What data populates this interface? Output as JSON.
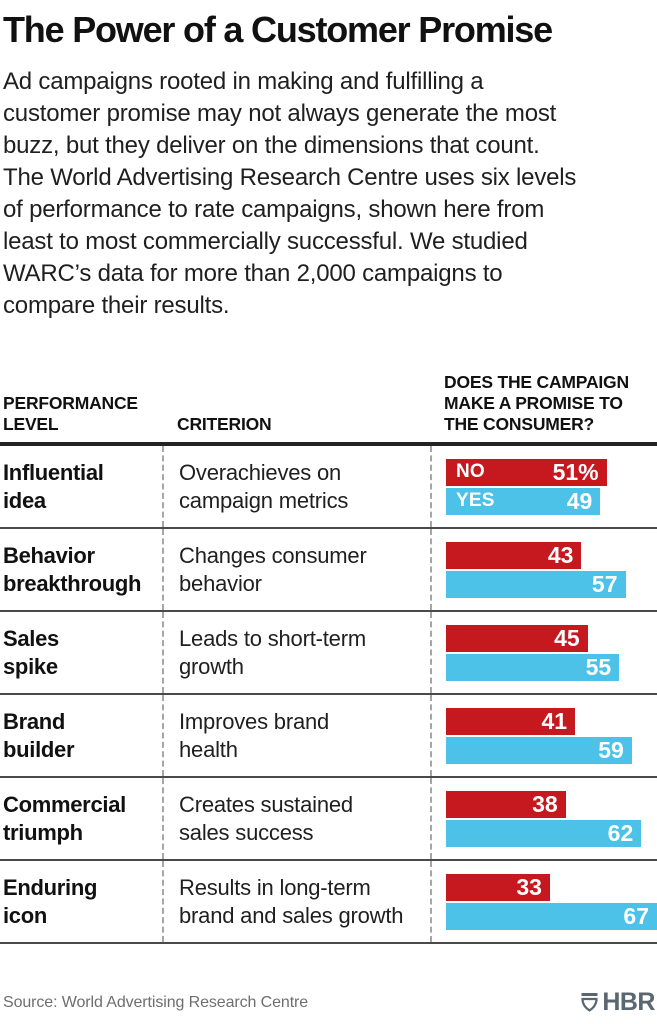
{
  "title": "The Power of a Customer Promise",
  "intro": "Ad campaigns rooted in making and fulfilling a\ncustomer promise may not always generate the most\nbuzz, but they deliver on the dimensions that count.\nThe World Advertising Research Centre uses six levels\nof performance to rate campaigns, shown here from\nleast to most commercially successful. We studied\nWARC’s data for more than 2,000 campaigns to\ncompare their results.",
  "table": {
    "headers": {
      "performance_level": "PERFORMANCE\nLEVEL",
      "criterion": "CRITERION",
      "promise_question": "DOES THE CAMPAIGN\nMAKE A PROMISE TO\nTHE CONSUMER?"
    },
    "rows": [
      {
        "level": "Influential\nidea",
        "criterion": "Overachieves on\ncampaign metrics",
        "no_display": "51%",
        "yes_display": "49"
      },
      {
        "level": "Behavior\nbreakthrough",
        "criterion": "Changes consumer\nbehavior",
        "no_display": "43",
        "yes_display": "57"
      },
      {
        "level": "Sales\nspike",
        "criterion": "Leads to short-term\ngrowth",
        "no_display": "45",
        "yes_display": "55"
      },
      {
        "level": "Brand\nbuilder",
        "criterion": "Improves brand\nhealth",
        "no_display": "41",
        "yes_display": "59"
      },
      {
        "level": "Commercial\ntriumph",
        "criterion": "Creates sustained\nsales success",
        "no_display": "38",
        "yes_display": "62"
      },
      {
        "level": "Enduring\nicon",
        "criterion": "Results in long-term\nbrand and sales growth",
        "no_display": "33",
        "yes_display": "67"
      }
    ]
  },
  "chart_data": {
    "type": "bar",
    "orientation": "horizontal",
    "title": "The Power of a Customer Promise",
    "categories": [
      "Influential idea",
      "Behavior breakthrough",
      "Sales spike",
      "Brand builder",
      "Commercial triumph",
      "Enduring icon"
    ],
    "criteria": [
      "Overachieves on campaign metrics",
      "Changes consumer behavior",
      "Leads to short-term growth",
      "Improves brand health",
      "Creates sustained sales success",
      "Results in long-term brand and sales growth"
    ],
    "series": [
      {
        "name": "NO",
        "color": "#c6191f",
        "values": [
          51,
          43,
          45,
          41,
          38,
          33
        ]
      },
      {
        "name": "YES",
        "color": "#4cc2e9",
        "values": [
          49,
          57,
          55,
          59,
          62,
          67
        ]
      }
    ],
    "unit": "%",
    "xlim": [
      0,
      67
    ],
    "value_labels": "inside-right",
    "legend_position": "inside-first-row",
    "grid": false
  },
  "footer": {
    "source": "Source: World Advertising Research Centre",
    "brand": "HBR"
  }
}
